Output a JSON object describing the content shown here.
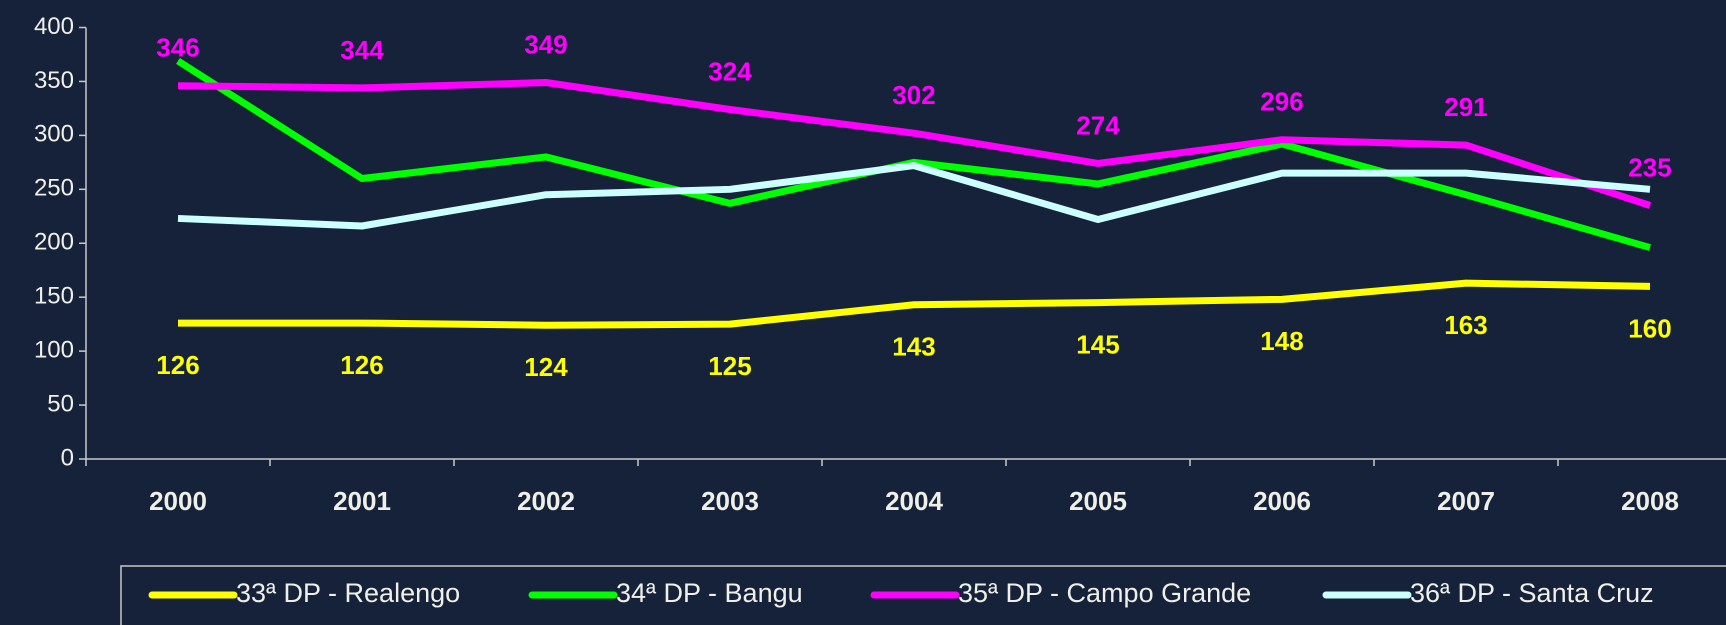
{
  "chart_data": {
    "type": "line",
    "categories": [
      "2000",
      "2001",
      "2002",
      "2003",
      "2004",
      "2005",
      "2006",
      "2007",
      "2008"
    ],
    "series": [
      {
        "name": "33ª DP - Realengo",
        "color": "#ffff00",
        "values": [
          126,
          126,
          124,
          125,
          143,
          145,
          148,
          163,
          160
        ],
        "data_labels": "below"
      },
      {
        "name": "34ª DP - Bangu",
        "color": "#00ff00",
        "values": [
          369,
          260,
          280,
          237,
          275,
          255,
          292,
          245,
          196
        ]
      },
      {
        "name": "35ª DP - Campo Grande",
        "color": "#ff00ff",
        "values": [
          346,
          344,
          349,
          324,
          302,
          274,
          296,
          291,
          235
        ],
        "data_labels": "above"
      },
      {
        "name": "36ª DP - Santa Cruz",
        "color": "#ccffff",
        "values": [
          223,
          216,
          245,
          250,
          272,
          222,
          265,
          265,
          250
        ]
      }
    ],
    "ylim": [
      0,
      400
    ],
    "yticks": [
      0,
      50,
      100,
      150,
      200,
      250,
      300,
      350,
      400
    ],
    "grid": false,
    "legend": "bottom"
  }
}
